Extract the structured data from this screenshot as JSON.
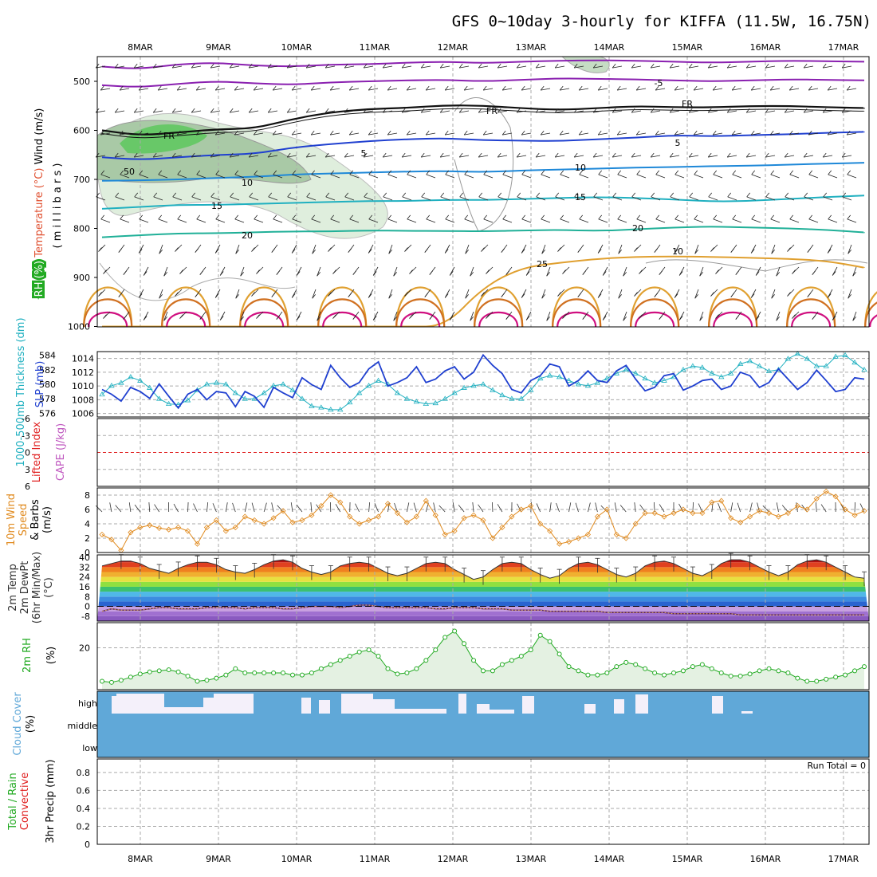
{
  "title": "GFS 0~10day 3-hourly for KIFFA (11.5W, 16.75N)",
  "dates": [
    "8MAR",
    "9MAR",
    "10MAR",
    "11MAR",
    "12MAR",
    "13MAR",
    "14MAR",
    "15MAR",
    "16MAR",
    "17MAR"
  ],
  "colors": {
    "temp": "#e05030",
    "rh": "#22aa22",
    "wind": "#e08a1e",
    "cape": "#c058c0",
    "li": "#e02020",
    "slp": "#2040d0",
    "thick": "#20b0c0",
    "cloud": "#60a8d8",
    "precip": "#22aa22"
  },
  "chart_data": [
    {
      "type": "heatmap",
      "panel": "upper-air",
      "ylabel_parts": [
        "RH (%)",
        "Temperature (°C)",
        "Wind (m/s)"
      ],
      "ylabel2": "( m i l l i b a r s )",
      "y_ticks": [
        500,
        600,
        700,
        800,
        900,
        1000
      ],
      "ylim": [
        1000,
        450
      ],
      "contour_labels": [
        "-5",
        "FR",
        "FR",
        "FR",
        "5",
        "5",
        "10",
        "10",
        "15",
        "15",
        "20",
        "20",
        "25",
        "10",
        "50"
      ],
      "isotherms": [
        {
          "label": "-5",
          "p": [
            470,
            475,
            465,
            462,
            468,
            470,
            466,
            465,
            462,
            460,
            463,
            460,
            458,
            457,
            458,
            460,
            462,
            460,
            458,
            459,
            460
          ],
          "color": "#8a20b0"
        },
        {
          "label": "-5",
          "p": [
            508,
            512,
            505,
            500,
            504,
            507,
            502,
            500,
            498,
            497,
            500,
            497,
            494,
            495,
            496,
            498,
            500,
            498,
            496,
            497,
            498
          ],
          "color": "#8a20b0"
        },
        {
          "label": "FR",
          "p": [
            600,
            608,
            605,
            600,
            595,
            575,
            565,
            558,
            552,
            548,
            552,
            555,
            556,
            555,
            553,
            552,
            551,
            552,
            552,
            551,
            553
          ],
          "color": "#101010"
        },
        {
          "label": "5",
          "p": [
            655,
            660,
            655,
            650,
            648,
            635,
            628,
            622,
            618,
            616,
            620,
            621,
            622,
            618,
            615,
            610,
            612,
            610,
            608,
            605,
            603
          ],
          "color": "#2040d0"
        },
        {
          "label": "10",
          "p": [
            703,
            702,
            700,
            697,
            695,
            690,
            688,
            686,
            684,
            683,
            685,
            682,
            680,
            678,
            676,
            675,
            673,
            672,
            670,
            668,
            666
          ],
          "color": "#1e88d8"
        },
        {
          "label": "15",
          "p": [
            760,
            756,
            752,
            752,
            750,
            748,
            746,
            744,
            744,
            742,
            742,
            740,
            738,
            736,
            738,
            741,
            745,
            744,
            740,
            736,
            733
          ],
          "color": "#20b0c0"
        },
        {
          "label": "20",
          "p": [
            818,
            814,
            810,
            810,
            808,
            806,
            806,
            804,
            805,
            805,
            806,
            804,
            803,
            805,
            802,
            798,
            796,
            798,
            800,
            803,
            808
          ],
          "color": "#20b098"
        },
        {
          "label": "25",
          "p": [
            1000,
            1000,
            1000,
            1000,
            1000,
            1000,
            1000,
            1000,
            1000,
            1000,
            920,
            880,
            870,
            862,
            858,
            857,
            858,
            860,
            862,
            866,
            880
          ],
          "color": "#e0a030"
        }
      ]
    },
    {
      "type": "line",
      "panel": "slp-thickness",
      "ylabel_parts": [
        "1000-500mb Thickness (dm)",
        "SLP (mb)"
      ],
      "left_ticks": [
        576,
        578,
        580,
        582,
        584
      ],
      "right_ticks": [
        1006,
        1008,
        1010,
        1012,
        1014
      ],
      "left_ylim": [
        575.5,
        584.5
      ],
      "right_ylim": [
        1005.5,
        1015
      ],
      "series": [
        {
          "name": "SLP",
          "values": [
            1009.5,
            1008.8,
            1007.8,
            1009.8,
            1009.2,
            1008.2,
            1010.3,
            1008.5,
            1006.8,
            1008.8,
            1009.5,
            1008.0,
            1009.2,
            1009.0,
            1007.0,
            1009.2,
            1008.5,
            1006.9,
            1009.8,
            1009.0,
            1008.3,
            1011.2,
            1010.2,
            1009.5,
            1013.0,
            1011.2,
            1009.8,
            1010.5,
            1012.5,
            1013.5,
            1010.0,
            1010.5,
            1011.2,
            1012.8,
            1010.5,
            1011.0,
            1012.2,
            1012.8,
            1011.0,
            1012.0,
            1014.5,
            1013.0,
            1011.8,
            1009.5,
            1009.0,
            1010.8,
            1011.5,
            1013.2,
            1012.8,
            1010.0,
            1010.8,
            1012.2,
            1010.8,
            1010.5,
            1012.2,
            1013.0,
            1011.0,
            1009.3,
            1009.8,
            1011.5,
            1011.8,
            1009.4,
            1010.0,
            1010.8,
            1011.0,
            1009.5,
            1010.0,
            1012.0,
            1011.5,
            1009.8,
            1010.5,
            1012.5,
            1011.0,
            1009.5,
            1010.5,
            1012.3,
            1010.8,
            1009.2,
            1009.5,
            1011.2,
            1011.0
          ]
        },
        {
          "name": "Thickness",
          "values": [
            578.6,
            579.8,
            580.2,
            581.0,
            580.5,
            579.5,
            578.0,
            577.3,
            577.2,
            577.8,
            579.2,
            580.0,
            580.2,
            580.0,
            578.8,
            578.0,
            578.0,
            578.8,
            579.8,
            580.0,
            579.2,
            578.0,
            577.0,
            576.8,
            576.5,
            576.5,
            577.5,
            578.8,
            579.8,
            580.5,
            580.0,
            578.8,
            578.0,
            577.6,
            577.3,
            577.4,
            578.0,
            578.8,
            579.5,
            579.8,
            580.0,
            579.2,
            578.5,
            578.0,
            578.0,
            579.2,
            580.8,
            581.2,
            581.0,
            580.5,
            580.0,
            579.8,
            580.2,
            580.8,
            581.5,
            582.0,
            581.5,
            580.8,
            580.2,
            580.5,
            581.0,
            582.0,
            582.5,
            582.3,
            581.5,
            581.0,
            581.5,
            582.8,
            583.2,
            582.5,
            581.8,
            582.0,
            583.5,
            584.2,
            583.5,
            582.5,
            582.5,
            583.8,
            584.0,
            583.0,
            582.0
          ]
        }
      ]
    },
    {
      "type": "line",
      "panel": "cape-li",
      "ylabel_parts": [
        "CAPE (J/kg)",
        "Lifted Index"
      ],
      "left_ticks": [
        -6,
        -3,
        0,
        3,
        6
      ],
      "ylim": [
        6,
        -6
      ],
      "series": [
        {
          "name": "Lifted Index",
          "values": [
            0,
            0,
            0,
            0,
            0,
            0,
            0,
            0,
            0,
            0
          ]
        }
      ]
    },
    {
      "type": "line",
      "panel": "wind10m",
      "ylabel_parts": [
        "10m Wind",
        "Speed",
        "& Barbs",
        "(m/s)"
      ],
      "left_ticks": [
        0,
        2,
        4,
        6,
        8
      ],
      "ylim": [
        0,
        9
      ],
      "series": [
        {
          "name": "10m Wind",
          "values": [
            2.5,
            1.8,
            0.3,
            2.8,
            3.5,
            3.8,
            3.4,
            3.2,
            3.5,
            3.0,
            1.2,
            3.5,
            4.5,
            3.0,
            3.5,
            5.0,
            4.5,
            4.0,
            4.8,
            5.8,
            4.2,
            4.5,
            5.2,
            6.5,
            8.0,
            7.0,
            5.0,
            4.0,
            4.5,
            5.0,
            6.8,
            5.5,
            4.2,
            5.0,
            7.2,
            5.2,
            2.5,
            3.0,
            4.8,
            5.2,
            4.5,
            2.0,
            3.5,
            5.0,
            6.0,
            6.5,
            4.0,
            3.0,
            1.2,
            1.5,
            2.0,
            2.5,
            5.0,
            6.0,
            2.5,
            2.0,
            4.0,
            5.5,
            5.5,
            5.0,
            5.5,
            6.0,
            5.5,
            5.5,
            7.0,
            7.2,
            4.8,
            4.2,
            5.0,
            5.8,
            5.5,
            5.0,
            5.5,
            6.5,
            6.0,
            7.5,
            8.5,
            7.8,
            6.0,
            5.2,
            5.8
          ]
        }
      ]
    },
    {
      "type": "area",
      "panel": "temp2m",
      "ylabel_parts": [
        "2m Temp",
        "2m DewPt",
        "(6hr Min/Max)",
        "(°C)"
      ],
      "left_ticks": [
        -8,
        0,
        8,
        16,
        24,
        32,
        40
      ],
      "ylim": [
        -12,
        42
      ],
      "series": [
        {
          "name": "2m Temp",
          "values": [
            33,
            35,
            37,
            37,
            35,
            31,
            29,
            27,
            31,
            34,
            36,
            36,
            34,
            30,
            28,
            27,
            30,
            34,
            37,
            38,
            36,
            31,
            28,
            26,
            28,
            33,
            35,
            36,
            35,
            31,
            27,
            25,
            27,
            31,
            35,
            36,
            35,
            30,
            26,
            22,
            24,
            30,
            35,
            36,
            35,
            30,
            26,
            23,
            25,
            31,
            35,
            36,
            34,
            30,
            26,
            24,
            27,
            33,
            36,
            37,
            35,
            31,
            27,
            25,
            29,
            35,
            38,
            38,
            36,
            32,
            28,
            25,
            28,
            34,
            37,
            38,
            36,
            32,
            28,
            24,
            23
          ]
        },
        {
          "name": "2m DewPt",
          "values": [
            -4,
            -2,
            -3,
            -3,
            -3,
            -2,
            -1,
            -1,
            -2,
            -2,
            -2,
            -1,
            -1,
            -1,
            -1,
            -2,
            -1,
            -1,
            -1,
            -2,
            -2,
            -1,
            0,
            0,
            0,
            -1,
            0,
            1,
            1,
            0,
            -1,
            -1,
            -1,
            -1,
            -1,
            -2,
            -2,
            -1,
            -1,
            -1,
            -2,
            -2,
            -2,
            -3,
            -3,
            -3,
            -3,
            -4,
            -4,
            -4,
            -4,
            -4,
            -4,
            -5,
            -5,
            -5,
            -5,
            -5,
            -5,
            -5,
            -6,
            -6,
            -6,
            -6,
            -6,
            -6,
            -6,
            -7,
            -7,
            -7,
            -7,
            -7,
            -7,
            -7,
            -7,
            -7,
            -7,
            -7,
            -7,
            -7,
            -7
          ]
        }
      ]
    },
    {
      "type": "area",
      "panel": "rh2m",
      "ylabel_parts": [
        "2m RH",
        "(%)"
      ],
      "left_ticks": [
        20
      ],
      "ylim": [
        0,
        32
      ],
      "series": [
        {
          "name": "2m RH",
          "values": [
            4,
            3.5,
            4.5,
            6,
            7.5,
            8.5,
            9,
            9.5,
            8.5,
            6.5,
            4,
            4.5,
            5.5,
            7,
            10,
            8,
            8,
            8,
            8,
            8,
            7,
            7,
            8,
            10,
            12,
            14,
            16,
            18,
            19,
            16,
            10,
            7.5,
            8,
            10,
            14,
            19,
            25,
            28,
            22,
            14,
            9,
            9,
            12,
            14,
            16,
            19,
            26,
            23,
            17,
            11,
            9,
            7,
            7,
            8,
            11,
            13,
            12,
            10,
            8,
            7,
            8,
            9,
            11,
            12,
            10,
            8,
            6.5,
            6.5,
            7.5,
            9,
            10,
            9,
            8,
            5.5,
            4,
            4,
            5,
            6,
            7,
            9,
            11
          ]
        }
      ]
    },
    {
      "type": "bar",
      "panel": "cloud",
      "ylabel_parts": [
        "Cloud Cover",
        "(%)"
      ],
      "tick_labels": [
        "high",
        "middle",
        "low"
      ],
      "series": [
        {
          "name": "high cloud",
          "values": [
            30,
            50,
            100,
            100,
            100,
            100,
            100,
            100,
            100,
            100,
            100,
            100,
            100,
            100,
            100,
            100,
            100,
            100,
            100,
            100,
            100,
            100,
            100,
            100,
            100,
            100,
            100,
            100,
            100,
            100,
            100,
            100,
            100,
            100,
            100,
            100,
            100,
            100,
            100,
            100,
            100,
            100,
            100,
            100,
            100,
            100,
            100,
            100,
            100,
            100,
            100,
            100,
            100,
            100,
            100,
            100,
            100,
            100,
            100,
            100,
            100,
            100,
            100,
            100,
            100,
            100,
            100,
            100,
            100,
            100,
            100,
            100,
            100,
            100,
            100,
            100,
            100,
            100,
            100,
            100,
            100
          ]
        }
      ]
    },
    {
      "type": "bar",
      "panel": "precip",
      "ylabel_parts": [
        "Total / Rain",
        "Convective",
        "3hr Precip (mm)"
      ],
      "left_ticks": [
        0,
        0.2,
        0.4,
        0.6,
        0.8
      ],
      "ylim": [
        0,
        0.95
      ],
      "run_total_label": "Run Total = 0",
      "series": [
        {
          "name": "Total",
          "values": [
            0,
            0,
            0,
            0,
            0,
            0,
            0,
            0,
            0,
            0
          ]
        }
      ]
    }
  ]
}
